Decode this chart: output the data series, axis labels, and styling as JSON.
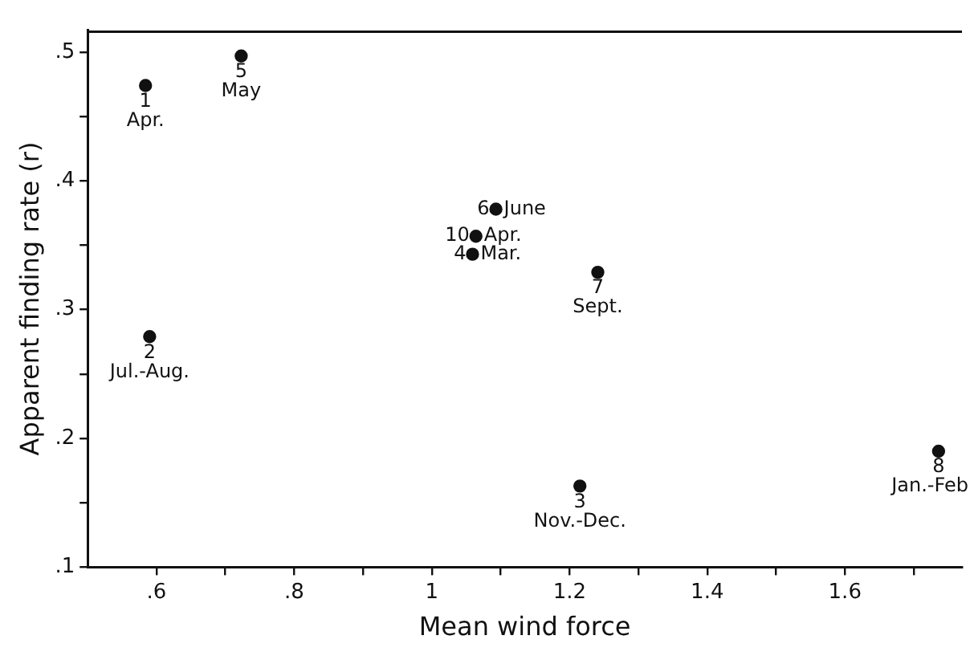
{
  "chart_data": {
    "type": "scatter",
    "xlabel": "Mean wind force",
    "ylabel": "Apparent finding rate (r)",
    "x": [
      0.584,
      0.723,
      0.59,
      1.093,
      1.064,
      1.059,
      1.241,
      1.215,
      1.736
    ],
    "series": [
      {
        "color": "#111111",
        "values": [
          0.474,
          0.497,
          0.279,
          0.378,
          0.357,
          0.343,
          0.329,
          0.163,
          0.19
        ]
      }
    ],
    "xlim": [
      0.5,
      1.77
    ],
    "ylim": [
      0.1,
      0.517
    ],
    "xticks": [
      {
        "value": 0.6,
        "label": ".6"
      },
      {
        "value": 0.7,
        "label": null
      },
      {
        "value": 0.8,
        "label": ".8"
      },
      {
        "value": 0.9,
        "label": null
      },
      1,
      {
        "value": 1.1,
        "label": null
      },
      1.2,
      {
        "value": 1.3,
        "label": null
      },
      1.4,
      {
        "value": 1.5,
        "label": null
      },
      1.6,
      {
        "value": 1.7,
        "label": null
      }
    ],
    "yticks": [
      {
        "value": 0.1,
        "label": ".1"
      },
      {
        "value": 0.15,
        "label": null
      },
      {
        "value": 0.2,
        "label": ".2"
      },
      {
        "value": 0.25,
        "label": null
      },
      {
        "value": 0.3,
        "label": ".3"
      },
      {
        "value": 0.35,
        "label": null
      },
      {
        "value": 0.4,
        "label": ".4"
      },
      {
        "value": 0.45,
        "label": null
      },
      {
        "value": 0.5,
        "label": ".5"
      }
    ],
    "annotations": [
      {
        "text": "1\nApr.",
        "x": 0.584,
        "y": 0.474
      },
      {
        "text": "5\nMay",
        "x": 0.723,
        "y": 0.497
      },
      {
        "text": "2\nJul.-Aug.",
        "x": 0.59,
        "y": 0.279
      },
      {
        "text": "6 June",
        "x": 1.093,
        "y": 0.378
      },
      {
        "text": "10 Apr.",
        "x": 1.064,
        "y": 0.357
      },
      {
        "text": "4 Mar.",
        "x": 1.059,
        "y": 0.343
      },
      {
        "text": "7\nSept.",
        "x": 1.241,
        "y": 0.329
      },
      {
        "text": "3\nNov.-Dec.",
        "x": 1.215,
        "y": 0.163
      },
      {
        "text": "8\nJan.-Feb",
        "x": 1.736,
        "y": 0.19
      }
    ],
    "grid": false,
    "legend": false,
    "marker": "circle"
  }
}
